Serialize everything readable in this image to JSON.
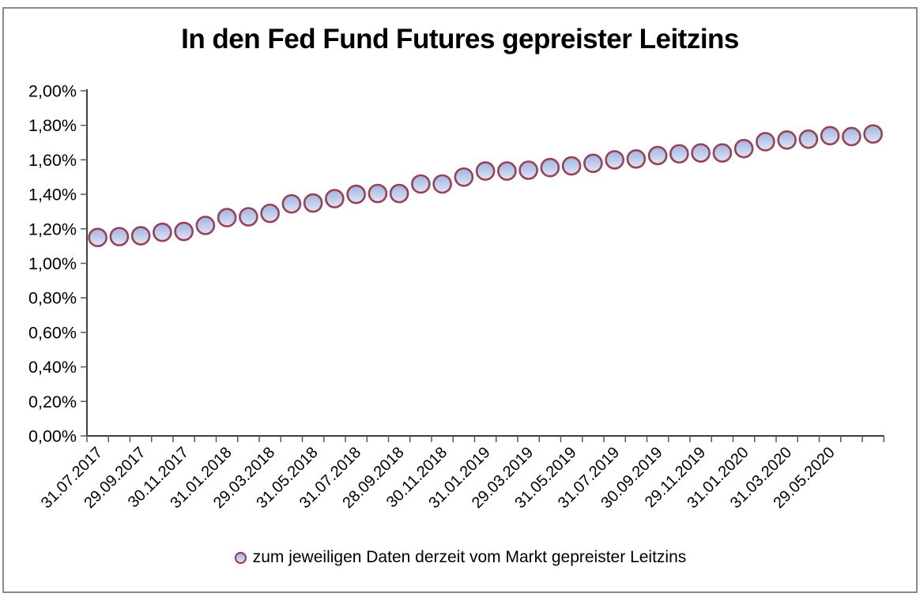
{
  "chart": {
    "title": "In den Fed Fund Futures gepreister Leitzins",
    "legend_label": "zum jeweiligen Daten derzeit vom Markt gepreister Leitzins",
    "colors": {
      "marker_stroke": "#9C4155",
      "marker_fill_top": "#9FB5E1",
      "marker_fill_bottom": "#DFE5F4",
      "axis": "#404040",
      "tick": "#595959",
      "label_text": "#000000",
      "frame_border": "#898989"
    }
  },
  "chart_data": {
    "type": "scatter",
    "title": "In den Fed Fund Futures gepreister Leitzins",
    "xlabel": "",
    "ylabel": "",
    "ylim": [
      0,
      2
    ],
    "y_step_percent": 0.2,
    "grid": false,
    "legend_position": "bottom",
    "legend": [
      "zum jeweiligen Daten derzeit vom Markt gepreister Leitzins"
    ],
    "y_tick_labels": [
      "0,00%",
      "0,20%",
      "0,40%",
      "0,60%",
      "0,80%",
      "1,00%",
      "1,20%",
      "1,40%",
      "1,60%",
      "1,80%",
      "2,00%"
    ],
    "x_tick_labels": [
      "31.07.2017",
      "29.09.2017",
      "30.11.2017",
      "31.01.2018",
      "29.03.2018",
      "31.05.2018",
      "31.07.2018",
      "28.09.2018",
      "30.11.2018",
      "31.01.2019",
      "29.03.2019",
      "31.05.2019",
      "31.07.2019",
      "30.09.2019",
      "29.11.2019",
      "31.01.2020",
      "31.03.2020",
      "29.05.2020"
    ],
    "x_label_every": 2,
    "x_dates": [
      "31.07.2017",
      "31.08.2017",
      "29.09.2017",
      "31.10.2017",
      "30.11.2017",
      "29.12.2017",
      "31.01.2018",
      "28.02.2018",
      "29.03.2018",
      "30.04.2018",
      "31.05.2018",
      "29.06.2018",
      "31.07.2018",
      "31.08.2018",
      "28.09.2018",
      "31.10.2018",
      "30.11.2018",
      "31.12.2018",
      "31.01.2019",
      "28.02.2019",
      "29.03.2019",
      "30.04.2019",
      "31.05.2019",
      "28.06.2019",
      "31.07.2019",
      "30.08.2019",
      "30.09.2019",
      "31.10.2019",
      "29.11.2019",
      "31.12.2019",
      "31.01.2020",
      "28.02.2020",
      "31.03.2020",
      "30.04.2020",
      "29.05.2020",
      "30.06.2020",
      "31.07.2020"
    ],
    "values_percent": [
      1.15,
      1.155,
      1.16,
      1.18,
      1.185,
      1.22,
      1.265,
      1.27,
      1.29,
      1.345,
      1.35,
      1.375,
      1.4,
      1.405,
      1.405,
      1.46,
      1.46,
      1.5,
      1.535,
      1.535,
      1.54,
      1.555,
      1.565,
      1.58,
      1.6,
      1.605,
      1.625,
      1.635,
      1.64,
      1.64,
      1.665,
      1.705,
      1.715,
      1.72,
      1.74,
      1.735,
      1.75
    ]
  }
}
